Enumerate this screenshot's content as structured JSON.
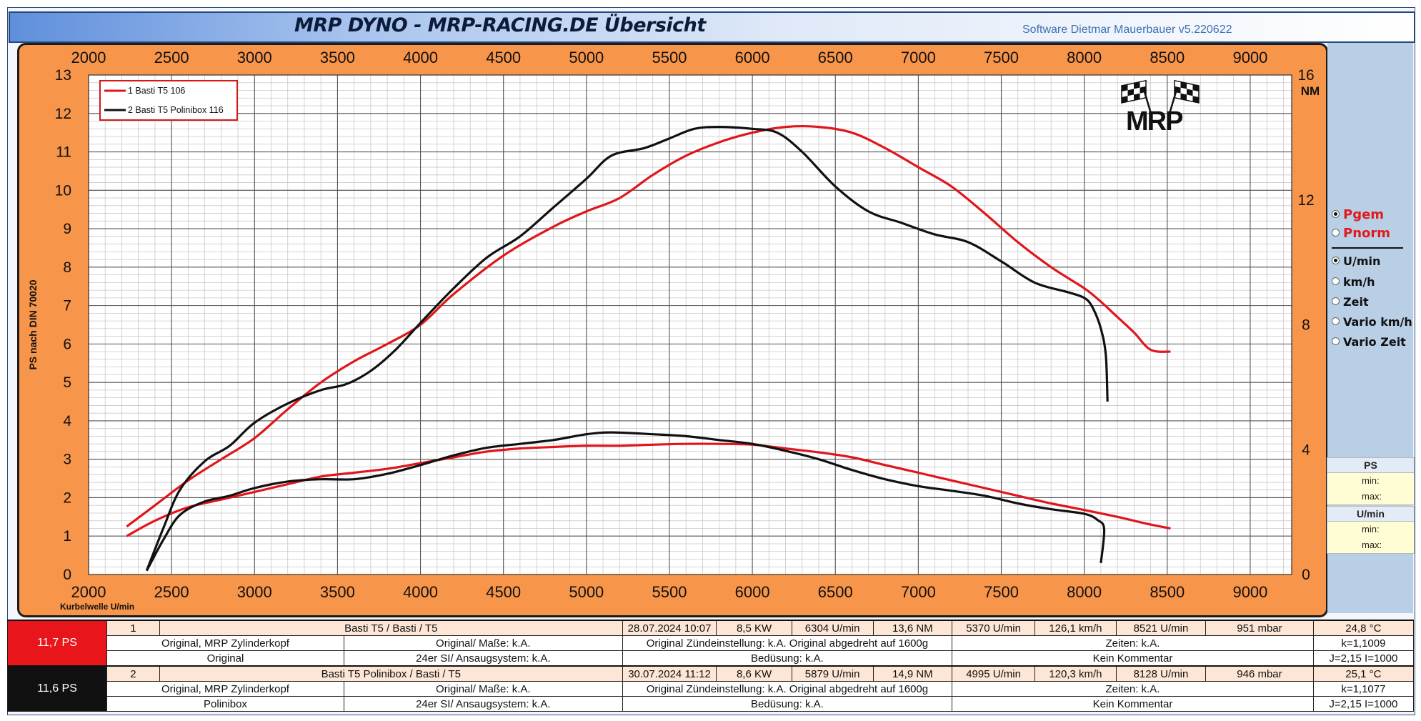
{
  "header": {
    "title": "MRP DYNO - MRP-RACING.DE  Übersicht",
    "software": "Software Dietmar Mauerbauer v5.220622"
  },
  "chart_data": {
    "type": "line",
    "ylabel": "PS nach DIN 70020",
    "xlabel": "Kurbelwelle U/min",
    "y2label": "NM",
    "xlim": [
      2000,
      9250
    ],
    "ylim": [
      0,
      13
    ],
    "y2lim": [
      0,
      16
    ],
    "xticks": [
      2000,
      2500,
      3000,
      3500,
      4000,
      4500,
      5000,
      5500,
      6000,
      6500,
      7000,
      7500,
      8000,
      8500,
      9000
    ],
    "yticks": [
      0,
      1,
      2,
      3,
      4,
      5,
      6,
      7,
      8,
      9,
      10,
      11,
      12,
      13
    ],
    "y2ticks": [
      0,
      4,
      8,
      12,
      16
    ],
    "grid": true,
    "legend_position": "top-left",
    "series": [
      {
        "name": "1  Basti T5 106",
        "color": "#e0161b",
        "power": [
          [
            2230,
            1.25
          ],
          [
            2400,
            1.8
          ],
          [
            2600,
            2.45
          ],
          [
            2800,
            3.0
          ],
          [
            3000,
            3.55
          ],
          [
            3200,
            4.3
          ],
          [
            3400,
            5.0
          ],
          [
            3600,
            5.55
          ],
          [
            3800,
            6.0
          ],
          [
            4000,
            6.5
          ],
          [
            4200,
            7.3
          ],
          [
            4500,
            8.3
          ],
          [
            4800,
            9.05
          ],
          [
            5000,
            9.45
          ],
          [
            5200,
            9.8
          ],
          [
            5400,
            10.4
          ],
          [
            5600,
            10.9
          ],
          [
            5800,
            11.25
          ],
          [
            6000,
            11.5
          ],
          [
            6200,
            11.65
          ],
          [
            6400,
            11.65
          ],
          [
            6600,
            11.5
          ],
          [
            6800,
            11.1
          ],
          [
            7000,
            10.6
          ],
          [
            7200,
            10.1
          ],
          [
            7400,
            9.4
          ],
          [
            7600,
            8.65
          ],
          [
            7800,
            8.0
          ],
          [
            8000,
            7.45
          ],
          [
            8100,
            7.1
          ],
          [
            8200,
            6.7
          ],
          [
            8300,
            6.3
          ],
          [
            8400,
            5.85
          ],
          [
            8520,
            5.8
          ]
        ],
        "torque": [
          [
            2230,
            1.0
          ],
          [
            2400,
            1.4
          ],
          [
            2600,
            1.75
          ],
          [
            2800,
            1.95
          ],
          [
            3000,
            2.15
          ],
          [
            3200,
            2.35
          ],
          [
            3400,
            2.55
          ],
          [
            3600,
            2.65
          ],
          [
            3800,
            2.75
          ],
          [
            4000,
            2.9
          ],
          [
            4200,
            3.05
          ],
          [
            4400,
            3.2
          ],
          [
            4600,
            3.28
          ],
          [
            4800,
            3.32
          ],
          [
            5000,
            3.35
          ],
          [
            5200,
            3.35
          ],
          [
            5400,
            3.38
          ],
          [
            5600,
            3.4
          ],
          [
            5800,
            3.4
          ],
          [
            6000,
            3.38
          ],
          [
            6200,
            3.28
          ],
          [
            6400,
            3.18
          ],
          [
            6600,
            3.05
          ],
          [
            6800,
            2.85
          ],
          [
            7000,
            2.65
          ],
          [
            7200,
            2.45
          ],
          [
            7400,
            2.25
          ],
          [
            7600,
            2.05
          ],
          [
            7800,
            1.85
          ],
          [
            8000,
            1.68
          ],
          [
            8200,
            1.5
          ],
          [
            8400,
            1.3
          ],
          [
            8520,
            1.2
          ]
        ]
      },
      {
        "name": "2  Basti T5 Polinibox 116",
        "color": "#111111",
        "power": [
          [
            2350,
            0.1
          ],
          [
            2450,
            1.2
          ],
          [
            2550,
            2.2
          ],
          [
            2700,
            2.95
          ],
          [
            2850,
            3.35
          ],
          [
            3000,
            3.95
          ],
          [
            3200,
            4.45
          ],
          [
            3400,
            4.8
          ],
          [
            3550,
            4.95
          ],
          [
            3700,
            5.3
          ],
          [
            3850,
            5.85
          ],
          [
            4000,
            6.55
          ],
          [
            4200,
            7.45
          ],
          [
            4400,
            8.25
          ],
          [
            4600,
            8.8
          ],
          [
            4800,
            9.55
          ],
          [
            5000,
            10.3
          ],
          [
            5150,
            10.9
          ],
          [
            5350,
            11.1
          ],
          [
            5500,
            11.35
          ],
          [
            5650,
            11.6
          ],
          [
            5800,
            11.65
          ],
          [
            6000,
            11.6
          ],
          [
            6150,
            11.5
          ],
          [
            6300,
            11.0
          ],
          [
            6500,
            10.1
          ],
          [
            6700,
            9.45
          ],
          [
            6900,
            9.15
          ],
          [
            7100,
            8.85
          ],
          [
            7300,
            8.65
          ],
          [
            7500,
            8.15
          ],
          [
            7700,
            7.6
          ],
          [
            7900,
            7.35
          ],
          [
            8000,
            7.2
          ],
          [
            8050,
            6.95
          ],
          [
            8100,
            6.4
          ],
          [
            8130,
            5.7
          ],
          [
            8140,
            4.5
          ]
        ],
        "torque": [
          [
            2350,
            0.1
          ],
          [
            2450,
            0.9
          ],
          [
            2550,
            1.55
          ],
          [
            2700,
            1.9
          ],
          [
            2850,
            2.05
          ],
          [
            3000,
            2.25
          ],
          [
            3200,
            2.42
          ],
          [
            3400,
            2.48
          ],
          [
            3600,
            2.48
          ],
          [
            3800,
            2.62
          ],
          [
            4000,
            2.85
          ],
          [
            4200,
            3.1
          ],
          [
            4400,
            3.3
          ],
          [
            4600,
            3.4
          ],
          [
            4800,
            3.5
          ],
          [
            5000,
            3.65
          ],
          [
            5150,
            3.7
          ],
          [
            5400,
            3.65
          ],
          [
            5600,
            3.6
          ],
          [
            5800,
            3.5
          ],
          [
            6000,
            3.4
          ],
          [
            6200,
            3.22
          ],
          [
            6400,
            3.0
          ],
          [
            6600,
            2.72
          ],
          [
            6800,
            2.48
          ],
          [
            7000,
            2.3
          ],
          [
            7200,
            2.18
          ],
          [
            7400,
            2.05
          ],
          [
            7600,
            1.85
          ],
          [
            7800,
            1.7
          ],
          [
            8000,
            1.58
          ],
          [
            8080,
            1.42
          ],
          [
            8120,
            1.18
          ],
          [
            8100,
            0.3
          ]
        ]
      }
    ]
  },
  "side": {
    "options_mode": [
      {
        "label": "Pgem",
        "selected": true
      },
      {
        "label": "Pnorm",
        "selected": false
      }
    ],
    "options_axis": [
      {
        "label": "U/min",
        "selected": true
      },
      {
        "label": "km/h",
        "selected": false
      },
      {
        "label": "Zeit",
        "selected": false
      },
      {
        "label": "Vario km/h",
        "selected": false
      },
      {
        "label": "Vario Zeit",
        "selected": false
      }
    ],
    "ps_box": {
      "header": "PS",
      "min": "min:",
      "max": "max:"
    },
    "rpm_box": {
      "header": "U/min",
      "min": "min:",
      "max": "max:"
    }
  },
  "runs": [
    {
      "badge": "11,7  PS",
      "badge_color": "#e8161b",
      "no": "1",
      "name": "Basti T5 / Basti / T5",
      "date": "28.07.2024 10:07",
      "kw": "8,5  KW",
      "kw_rpm": "6304  U/min",
      "nm": "13,6  NM",
      "nm_rpm": "5370  U/min",
      "speed": "126,1 km/h",
      "speed_rpm": "8521  U/min",
      "pressure": "951  mbar",
      "temp": "24,8 °C",
      "head": "Original, MRP Zylinderkopf",
      "dims": "Original/ Maße: k.A.",
      "ignition": "Original  Zündeinstellung: k.A. Original abgedreht auf 1600g",
      "times": "Zeiten: k.A.",
      "k": "k=1,1009",
      "exhaust": "Original",
      "carb": "24er SI/ Ansaugsystem: k.A.",
      "jets": "Bedüsung: k.A.",
      "comment": "Kein Kommentar",
      "inertia": "J=2,15 I=1000"
    },
    {
      "badge": "11,6  PS",
      "badge_color": "#111111",
      "no": "2",
      "name": "Basti T5 Polinibox / Basti / T5",
      "date": "30.07.2024 11:12",
      "kw": "8,6  KW",
      "kw_rpm": "5879  U/min",
      "nm": "14,9  NM",
      "nm_rpm": "4995  U/min",
      "speed": "120,3 km/h",
      "speed_rpm": "8128  U/min",
      "pressure": "946  mbar",
      "temp": "25,1 °C",
      "head": "Original, MRP Zylinderkopf",
      "dims": "Original/ Maße: k.A.",
      "ignition": "Original  Zündeinstellung: k.A. Original abgedreht auf 1600g",
      "times": "Zeiten: k.A.",
      "k": "k=1,1077",
      "exhaust": "Polinibox",
      "carb": "24er SI/ Ansaugsystem: k.A.",
      "jets": "Bedüsung: k.A.",
      "comment": "Kein Kommentar",
      "inertia": "J=2,15 I=1000"
    }
  ]
}
